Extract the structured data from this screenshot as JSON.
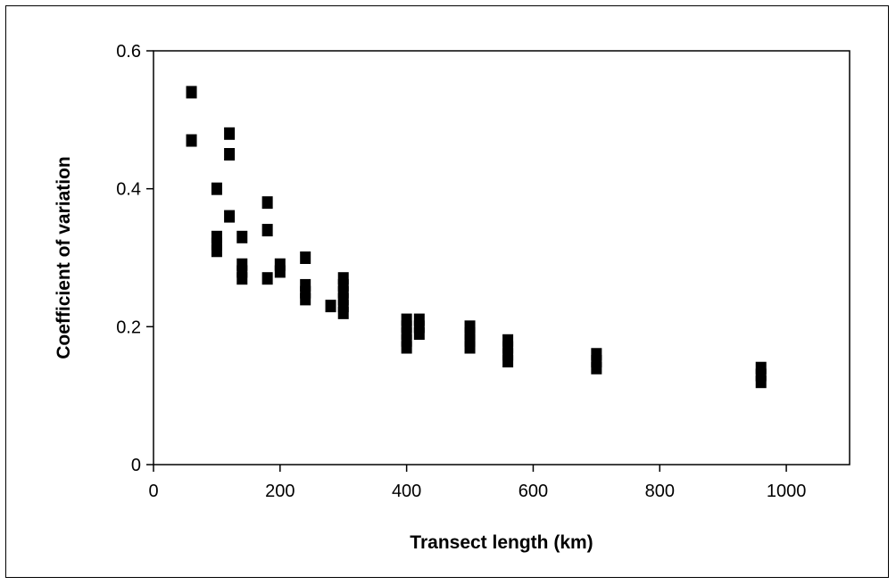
{
  "chart_data": {
    "type": "scatter",
    "title": "",
    "xlabel": "Transect length (km)",
    "ylabel": "Coefficient of variation",
    "xlim": [
      0,
      1100
    ],
    "ylim": [
      0,
      0.6
    ],
    "x_ticks": [
      0,
      200,
      400,
      600,
      800,
      1000
    ],
    "x_tick_labels": [
      "0",
      "200",
      "400",
      "600",
      "800",
      "1000"
    ],
    "y_ticks": [
      0,
      0.2,
      0.4,
      0.6
    ],
    "y_tick_labels": [
      "0",
      "0.2",
      "0.4",
      "0.6"
    ],
    "grid": false,
    "legend": "none",
    "marker": "square",
    "marker_color": "#000000",
    "series": [
      {
        "points": [
          [
            60,
            0.54
          ],
          [
            60,
            0.47
          ],
          [
            100,
            0.4
          ],
          [
            100,
            0.33
          ],
          [
            100,
            0.32
          ],
          [
            100,
            0.31
          ],
          [
            120,
            0.48
          ],
          [
            120,
            0.45
          ],
          [
            120,
            0.36
          ],
          [
            140,
            0.33
          ],
          [
            140,
            0.29
          ],
          [
            140,
            0.28
          ],
          [
            140,
            0.27
          ],
          [
            180,
            0.38
          ],
          [
            180,
            0.34
          ],
          [
            180,
            0.27
          ],
          [
            200,
            0.29
          ],
          [
            200,
            0.28
          ],
          [
            240,
            0.3
          ],
          [
            240,
            0.26
          ],
          [
            240,
            0.25
          ],
          [
            240,
            0.24
          ],
          [
            280,
            0.23
          ],
          [
            300,
            0.27
          ],
          [
            300,
            0.26
          ],
          [
            300,
            0.25
          ],
          [
            300,
            0.24
          ],
          [
            300,
            0.23
          ],
          [
            300,
            0.22
          ],
          [
            400,
            0.21
          ],
          [
            400,
            0.2
          ],
          [
            400,
            0.19
          ],
          [
            400,
            0.18
          ],
          [
            400,
            0.17
          ],
          [
            420,
            0.21
          ],
          [
            420,
            0.2
          ],
          [
            420,
            0.19
          ],
          [
            500,
            0.2
          ],
          [
            500,
            0.19
          ],
          [
            500,
            0.18
          ],
          [
            500,
            0.17
          ],
          [
            560,
            0.18
          ],
          [
            560,
            0.17
          ],
          [
            560,
            0.16
          ],
          [
            560,
            0.15
          ],
          [
            700,
            0.16
          ],
          [
            700,
            0.15
          ],
          [
            700,
            0.14
          ],
          [
            960,
            0.14
          ],
          [
            960,
            0.13
          ],
          [
            960,
            0.12
          ]
        ]
      }
    ]
  }
}
